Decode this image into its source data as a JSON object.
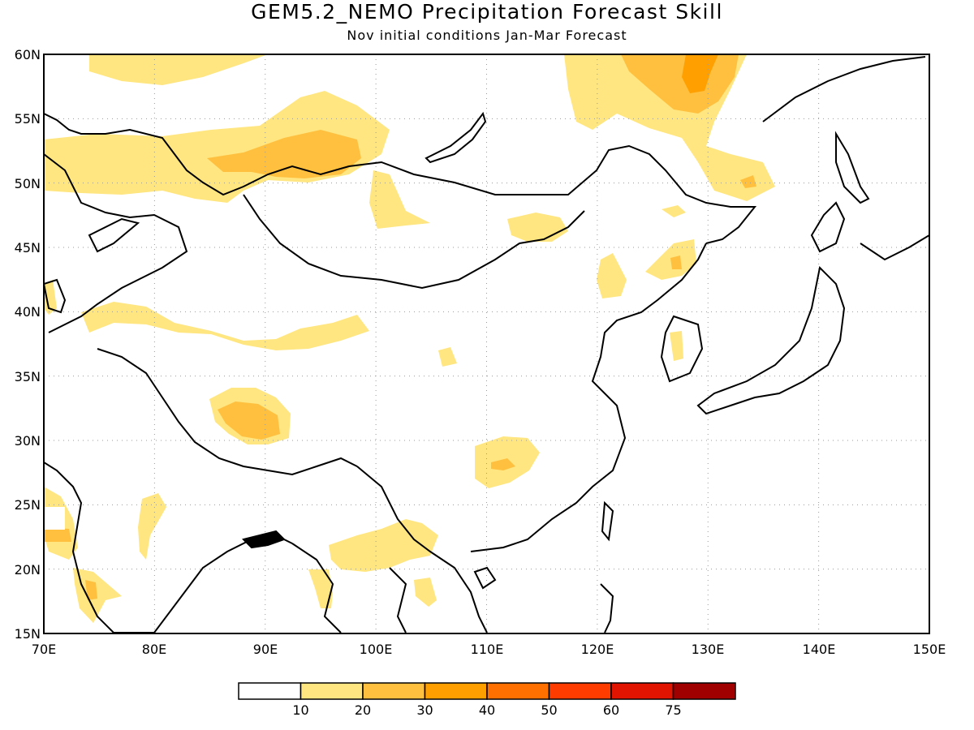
{
  "title": "GEM5.2_NEMO Precipitation Forecast Skill",
  "subtitle": "Nov initial conditions  Jan-Mar Forecast",
  "map": {
    "lon_range": [
      70,
      150
    ],
    "lat_range": [
      15,
      60
    ],
    "lon_ticks": [
      "70E",
      "80E",
      "90E",
      "100E",
      "110E",
      "120E",
      "130E",
      "140E",
      "150E"
    ],
    "lat_ticks": [
      "60N",
      "55N",
      "50N",
      "45N",
      "40N",
      "35N",
      "30N",
      "25N",
      "20N",
      "15N"
    ],
    "grid": true
  },
  "colorbar": {
    "levels": [
      "10",
      "20",
      "30",
      "40",
      "50",
      "60",
      "75"
    ],
    "colors": [
      "#ffffff",
      "#ffe680",
      "#ffc040",
      "#ffa000",
      "#ff7000",
      "#ff3c00",
      "#e01400",
      "#a00000"
    ]
  }
}
